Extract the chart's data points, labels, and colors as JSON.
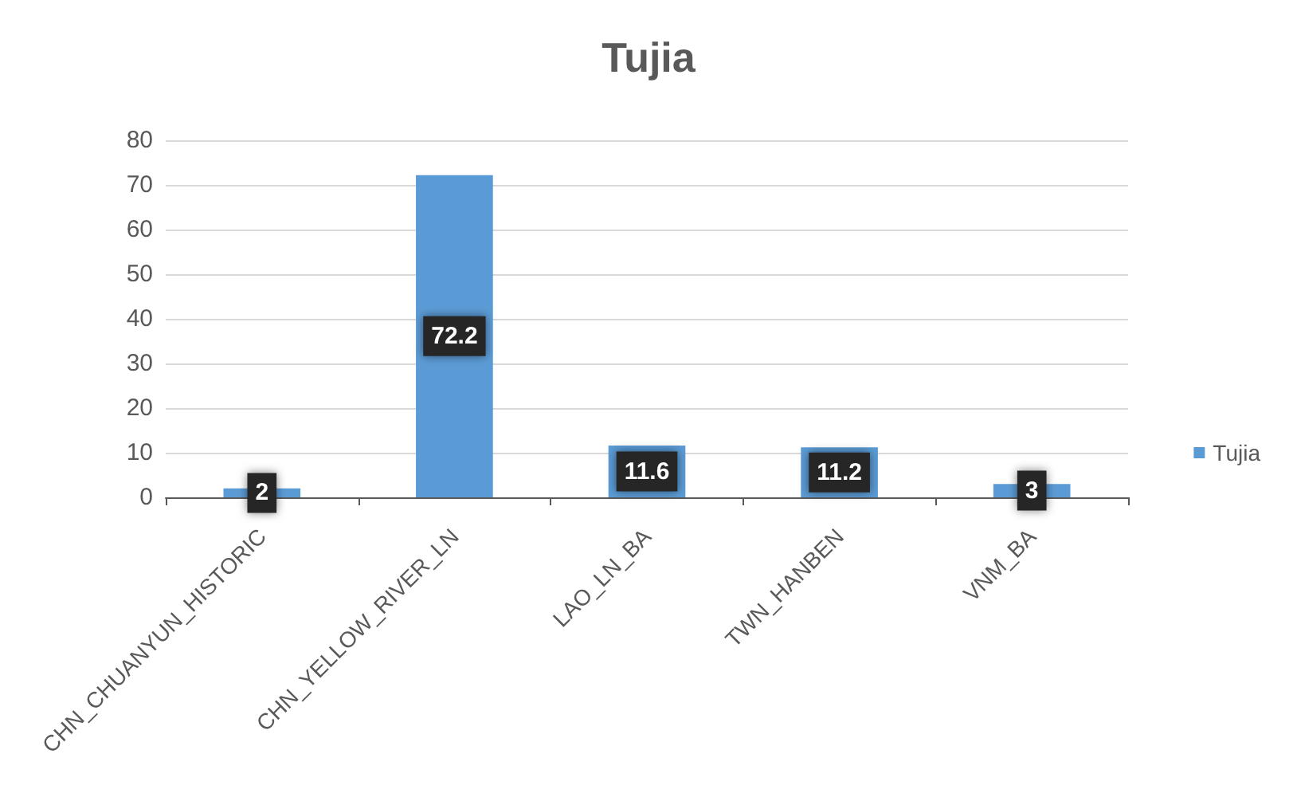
{
  "chart_data": {
    "type": "bar",
    "title": "Tujia",
    "categories": [
      "CHN_CHUANYUN_HISTORIC",
      "CHN_YELLOW_RIVER_LN",
      "LAO_LN_BA",
      "TWN_HANBEN",
      "VNM_BA"
    ],
    "series": [
      {
        "name": "Tujia",
        "color": "#5b9bd5",
        "values": [
          2,
          72.2,
          11.6,
          11.2,
          3
        ]
      }
    ],
    "ylim": [
      0,
      80
    ],
    "yticks": [
      0,
      10,
      20,
      30,
      40,
      50,
      60,
      70,
      80
    ],
    "grid": "y",
    "legend": "right",
    "data_labels": true
  }
}
